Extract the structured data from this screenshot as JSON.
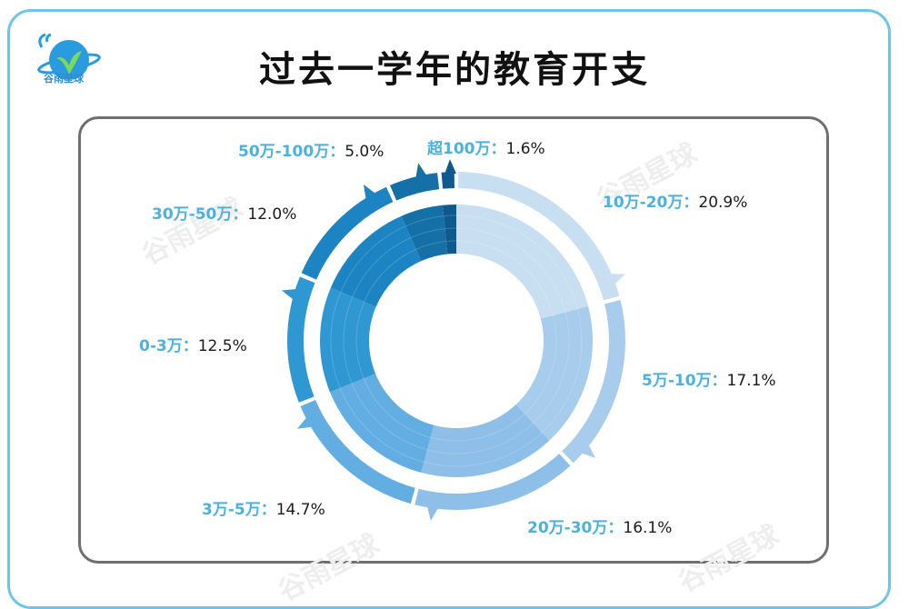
{
  "brand": {
    "logo_text": "谷雨星球",
    "watermark": "谷雨星球"
  },
  "chart_data": {
    "type": "pie",
    "title": "过去一学年的教育开支",
    "categories": [
      "10万-20万",
      "5万-10万",
      "20万-30万",
      "3万-5万",
      "0-3万",
      "30万-50万",
      "50万-100万",
      "超100万"
    ],
    "values": [
      20.9,
      17.1,
      16.1,
      14.7,
      12.5,
      12.0,
      5.0,
      1.6
    ],
    "value_labels": [
      "20.9%",
      "17.1%",
      "16.1%",
      "14.7%",
      "12.5%",
      "12.0%",
      "5.0%",
      "1.6%"
    ],
    "colors": [
      "#c8dff1",
      "#a8ccec",
      "#8ebfe8",
      "#62aee2",
      "#2f98d3",
      "#1c84c2",
      "#1570a8",
      "#0e5a8e"
    ],
    "separator": "："
  }
}
